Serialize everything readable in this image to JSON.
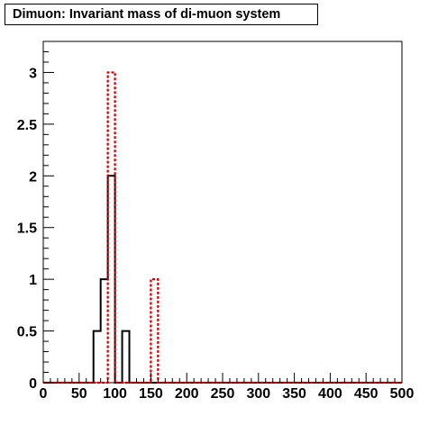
{
  "chart_data": {
    "type": "histogram",
    "title": "Dimuon: Invariant mass of di-muon system",
    "xlabel": "",
    "ylabel": "",
    "xlim": [
      0,
      500
    ],
    "ylim": [
      0,
      3.3
    ],
    "bin_width": 10,
    "x_ticks": [
      "0",
      "50",
      "100",
      "150",
      "200",
      "250",
      "300",
      "350",
      "400",
      "450",
      "500"
    ],
    "y_ticks": [
      "0",
      "0.5",
      "1",
      "1.5",
      "2",
      "2.5",
      "3"
    ],
    "x_tick_values": [
      0,
      50,
      100,
      150,
      200,
      250,
      300,
      350,
      400,
      450,
      500
    ],
    "y_tick_values": [
      0,
      0.5,
      1,
      1.5,
      2,
      2.5,
      3
    ],
    "grid": false,
    "series": [
      {
        "style": "solid",
        "color": "#000000",
        "bins": [
          {
            "low": 70,
            "high": 80,
            "value": 0.5
          },
          {
            "low": 80,
            "high": 90,
            "value": 1
          },
          {
            "low": 90,
            "high": 100,
            "value": 2
          },
          {
            "low": 100,
            "high": 110,
            "value": 0
          },
          {
            "low": 110,
            "high": 120,
            "value": 0.5
          }
        ]
      },
      {
        "style": "dashed",
        "color": "#cc0000",
        "bins": [
          {
            "low": 90,
            "high": 100,
            "value": 3
          },
          {
            "low": 150,
            "high": 160,
            "value": 1
          }
        ]
      }
    ]
  }
}
